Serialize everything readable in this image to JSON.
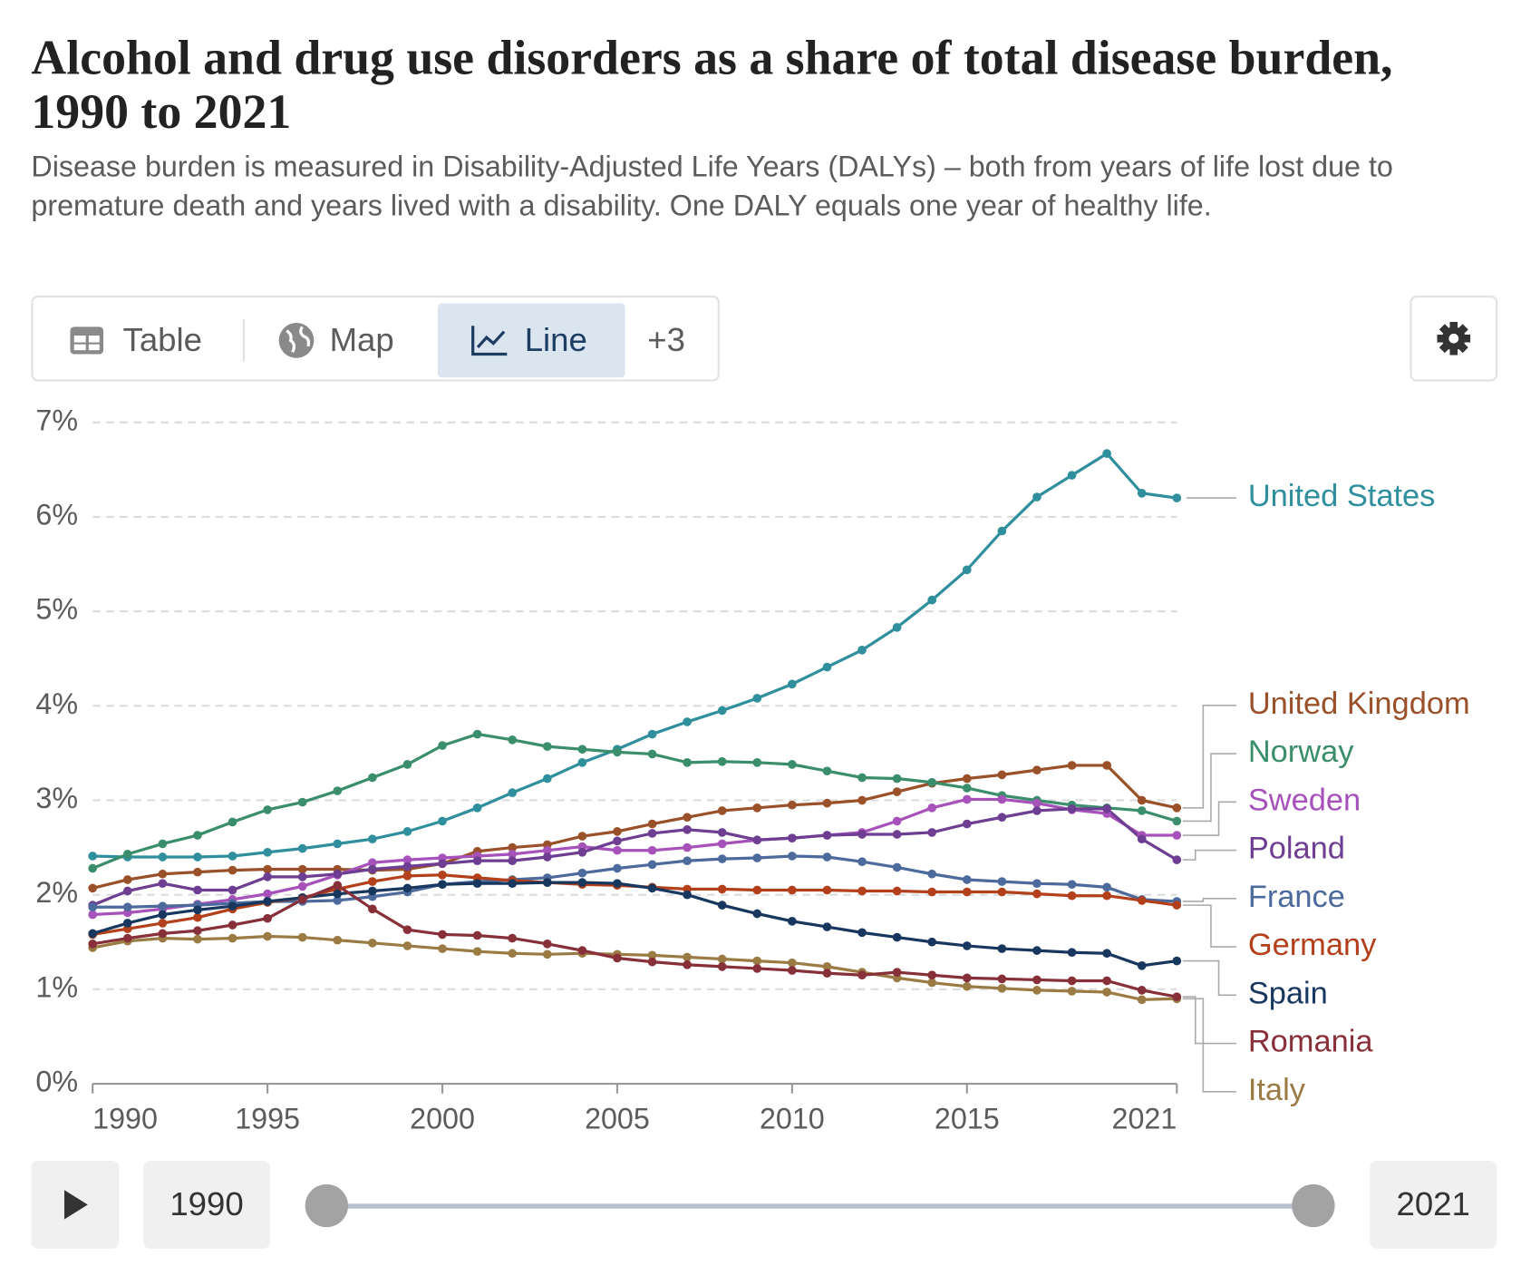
{
  "chart_data": {
    "type": "line",
    "title": "Alcohol and drug use disorders as a share of total disease burden, 1990 to 2021",
    "subtitle": "Disease burden is measured in Disability-Adjusted Life Years (DALYs) – both from years of life lost due to premature death and years lived with a disability. One DALY equals one year of healthy life.",
    "x": [
      1990,
      1991,
      1992,
      1993,
      1994,
      1995,
      1996,
      1997,
      1998,
      1999,
      2000,
      2001,
      2002,
      2003,
      2004,
      2005,
      2006,
      2007,
      2008,
      2009,
      2010,
      2011,
      2012,
      2013,
      2014,
      2015,
      2016,
      2017,
      2018,
      2019,
      2020,
      2021
    ],
    "xlim": [
      1990,
      2021
    ],
    "xticks": [
      1990,
      1995,
      2000,
      2005,
      2010,
      2015,
      2021
    ],
    "ylim": [
      0,
      7
    ],
    "yticks": [
      {
        "value": 0,
        "label": "0%"
      },
      {
        "value": 1,
        "label": "1%"
      },
      {
        "value": 2,
        "label": "2%"
      },
      {
        "value": 3,
        "label": "3%"
      },
      {
        "value": 4,
        "label": "4%"
      },
      {
        "value": 5,
        "label": "5%"
      },
      {
        "value": 6,
        "label": "6%"
      },
      {
        "value": 7,
        "label": "7%"
      }
    ],
    "grid": true,
    "series": [
      {
        "name": "United States",
        "color": "#2f8f9d",
        "values": [
          2.41,
          2.4,
          2.4,
          2.4,
          2.41,
          2.45,
          2.49,
          2.54,
          2.59,
          2.67,
          2.78,
          2.92,
          3.08,
          3.23,
          3.4,
          3.54,
          3.7,
          3.83,
          3.95,
          4.08,
          4.23,
          4.41,
          4.59,
          4.83,
          5.12,
          5.44,
          5.85,
          6.21,
          6.44,
          6.67,
          6.25,
          6.2
        ]
      },
      {
        "name": "United Kingdom",
        "color": "#9a5129",
        "values": [
          2.07,
          2.16,
          2.22,
          2.24,
          2.26,
          2.27,
          2.27,
          2.27,
          2.26,
          2.27,
          2.33,
          2.46,
          2.5,
          2.53,
          2.62,
          2.67,
          2.75,
          2.82,
          2.89,
          2.92,
          2.95,
          2.97,
          3.0,
          3.09,
          3.18,
          3.23,
          3.27,
          3.32,
          3.37,
          3.37,
          3.0,
          2.92
        ]
      },
      {
        "name": "Norway",
        "color": "#3b8e6b",
        "values": [
          2.28,
          2.43,
          2.54,
          2.63,
          2.77,
          2.9,
          2.98,
          3.1,
          3.24,
          3.38,
          3.58,
          3.7,
          3.64,
          3.57,
          3.54,
          3.51,
          3.49,
          3.4,
          3.41,
          3.4,
          3.38,
          3.31,
          3.24,
          3.23,
          3.19,
          3.13,
          3.05,
          3.0,
          2.95,
          2.92,
          2.89,
          2.78
        ]
      },
      {
        "name": "Sweden",
        "color": "#a652ba",
        "values": [
          1.79,
          1.81,
          1.85,
          1.9,
          1.95,
          2.01,
          2.09,
          2.21,
          2.34,
          2.37,
          2.39,
          2.41,
          2.43,
          2.47,
          2.51,
          2.47,
          2.47,
          2.5,
          2.54,
          2.58,
          2.6,
          2.63,
          2.66,
          2.78,
          2.92,
          3.01,
          3.01,
          2.97,
          2.9,
          2.86,
          2.63,
          2.63
        ]
      },
      {
        "name": "Poland",
        "color": "#6d3e91",
        "values": [
          1.89,
          2.04,
          2.12,
          2.05,
          2.05,
          2.19,
          2.19,
          2.22,
          2.27,
          2.3,
          2.33,
          2.36,
          2.36,
          2.4,
          2.45,
          2.57,
          2.65,
          2.69,
          2.66,
          2.58,
          2.6,
          2.63,
          2.64,
          2.64,
          2.66,
          2.75,
          2.82,
          2.89,
          2.91,
          2.91,
          2.59,
          2.37
        ]
      },
      {
        "name": "France",
        "color": "#4c6a9c",
        "values": [
          1.87,
          1.87,
          1.88,
          1.89,
          1.91,
          1.93,
          1.93,
          1.94,
          1.98,
          2.03,
          2.11,
          2.14,
          2.16,
          2.18,
          2.23,
          2.28,
          2.32,
          2.36,
          2.38,
          2.39,
          2.41,
          2.4,
          2.35,
          2.29,
          2.22,
          2.16,
          2.14,
          2.12,
          2.11,
          2.08,
          1.95,
          1.93
        ]
      },
      {
        "name": "Germany",
        "color": "#b3401a",
        "values": [
          1.58,
          1.64,
          1.7,
          1.76,
          1.85,
          1.92,
          1.97,
          2.06,
          2.14,
          2.2,
          2.21,
          2.18,
          2.15,
          2.13,
          2.11,
          2.1,
          2.08,
          2.06,
          2.06,
          2.05,
          2.05,
          2.05,
          2.04,
          2.04,
          2.03,
          2.03,
          2.03,
          2.01,
          1.99,
          1.99,
          1.94,
          1.89
        ]
      },
      {
        "name": "Spain",
        "color": "#18375f",
        "values": [
          1.59,
          1.7,
          1.79,
          1.84,
          1.88,
          1.93,
          1.97,
          2.01,
          2.04,
          2.07,
          2.11,
          2.12,
          2.12,
          2.13,
          2.13,
          2.12,
          2.07,
          2.0,
          1.89,
          1.8,
          1.72,
          1.66,
          1.6,
          1.55,
          1.5,
          1.46,
          1.43,
          1.41,
          1.39,
          1.38,
          1.25,
          1.3
        ]
      },
      {
        "name": "Italy",
        "color": "#9a7b43",
        "values": [
          1.44,
          1.51,
          1.54,
          1.53,
          1.54,
          1.56,
          1.55,
          1.52,
          1.49,
          1.46,
          1.43,
          1.4,
          1.38,
          1.37,
          1.38,
          1.37,
          1.36,
          1.34,
          1.32,
          1.3,
          1.28,
          1.24,
          1.18,
          1.12,
          1.07,
          1.03,
          1.01,
          0.99,
          0.98,
          0.97,
          0.89,
          0.9
        ]
      },
      {
        "name": "Romania",
        "color": "#883039",
        "values": [
          1.48,
          1.54,
          1.59,
          1.62,
          1.68,
          1.75,
          1.95,
          2.1,
          1.85,
          1.63,
          1.58,
          1.57,
          1.54,
          1.48,
          1.41,
          1.33,
          1.29,
          1.26,
          1.24,
          1.22,
          1.2,
          1.17,
          1.15,
          1.18,
          1.15,
          1.12,
          1.11,
          1.1,
          1.09,
          1.09,
          0.99,
          0.92
        ]
      }
    ]
  },
  "controls": {
    "tabs": [
      "Table",
      "Map",
      "Line",
      "+3"
    ],
    "time_start": "1990",
    "time_end": "2021"
  }
}
